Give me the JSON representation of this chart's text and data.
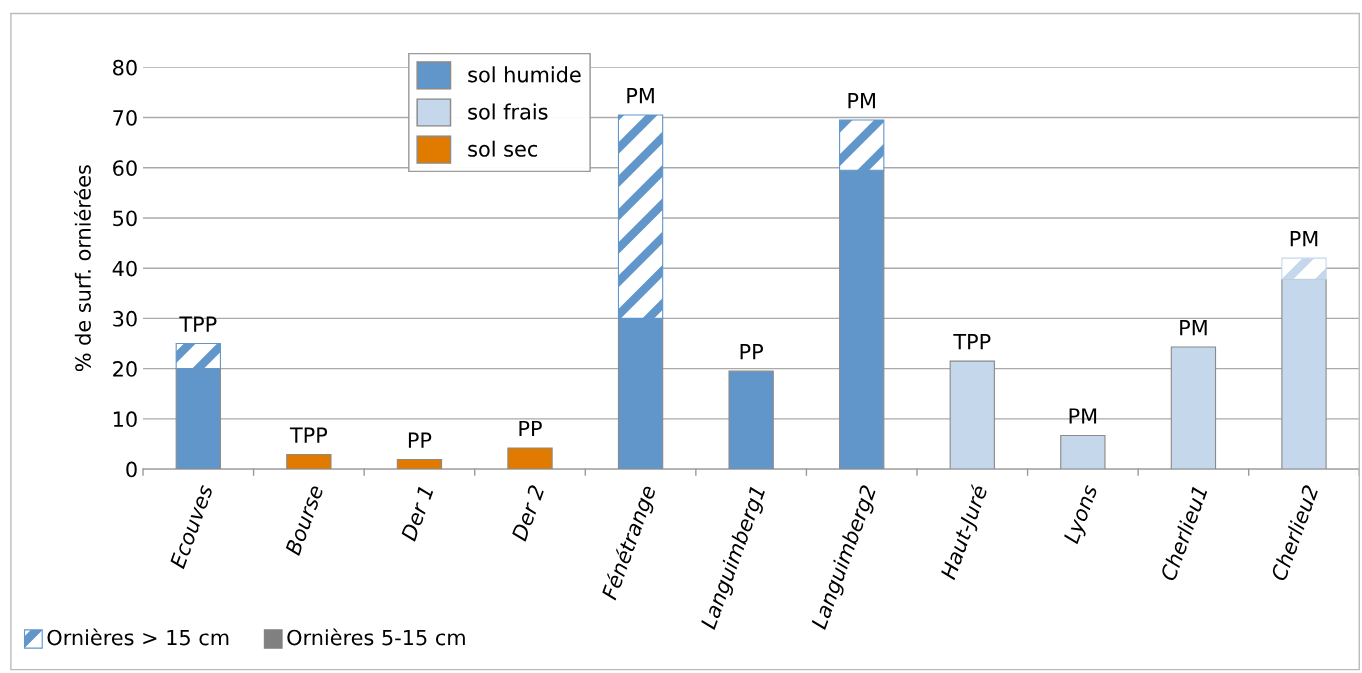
{
  "chart_data": {
    "type": "bar",
    "stacked": true,
    "ylabel": "% de surf. orniérées",
    "categories": [
      "Ecouves",
      "Bourse",
      "Der 1",
      "Der 2",
      "Fénétrange",
      "Languimberg1",
      "Languimberg2",
      "Haut-Juré",
      "Lyons",
      "Cherlieu1",
      "Cherlieu2"
    ],
    "series": [
      {
        "name": "sol humide",
        "color": "#6096c9",
        "values": [
          20,
          null,
          null,
          null,
          30,
          19.5,
          59.5,
          null,
          null,
          null,
          null
        ]
      },
      {
        "name": "sol frais",
        "color": "#c5d7eb",
        "values": [
          null,
          null,
          null,
          null,
          null,
          null,
          null,
          21.5,
          6.7,
          24.3,
          37.8
        ]
      },
      {
        "name": "sol sec",
        "color": "#e07b00",
        "values": [
          null,
          2.9,
          1.9,
          4.2,
          null,
          null,
          null,
          null,
          null,
          null,
          null
        ]
      },
      {
        "name": "Ornières > 15 cm",
        "color": "#6096c9",
        "colors": [
          "#6096c9",
          null,
          null,
          null,
          "#6096c9",
          null,
          "#6096c9",
          null,
          null,
          null,
          "#c5d7eb"
        ],
        "values": [
          5,
          null,
          null,
          null,
          40.5,
          null,
          10,
          null,
          null,
          null,
          4.2
        ]
      }
    ],
    "totals": [
      "TPP",
      "TPP",
      "PP",
      "PP",
      "PM",
      "PP",
      "PM",
      "TPP",
      "PM",
      "PM",
      "PM"
    ],
    "annotations": [
      "Ornières 5-15 cm"
    ],
    "ylim": [
      0,
      80
    ],
    "yticks": [
      0,
      10,
      20,
      30,
      40,
      50,
      60,
      70,
      80
    ],
    "grid": "y",
    "legend": "left"
  }
}
